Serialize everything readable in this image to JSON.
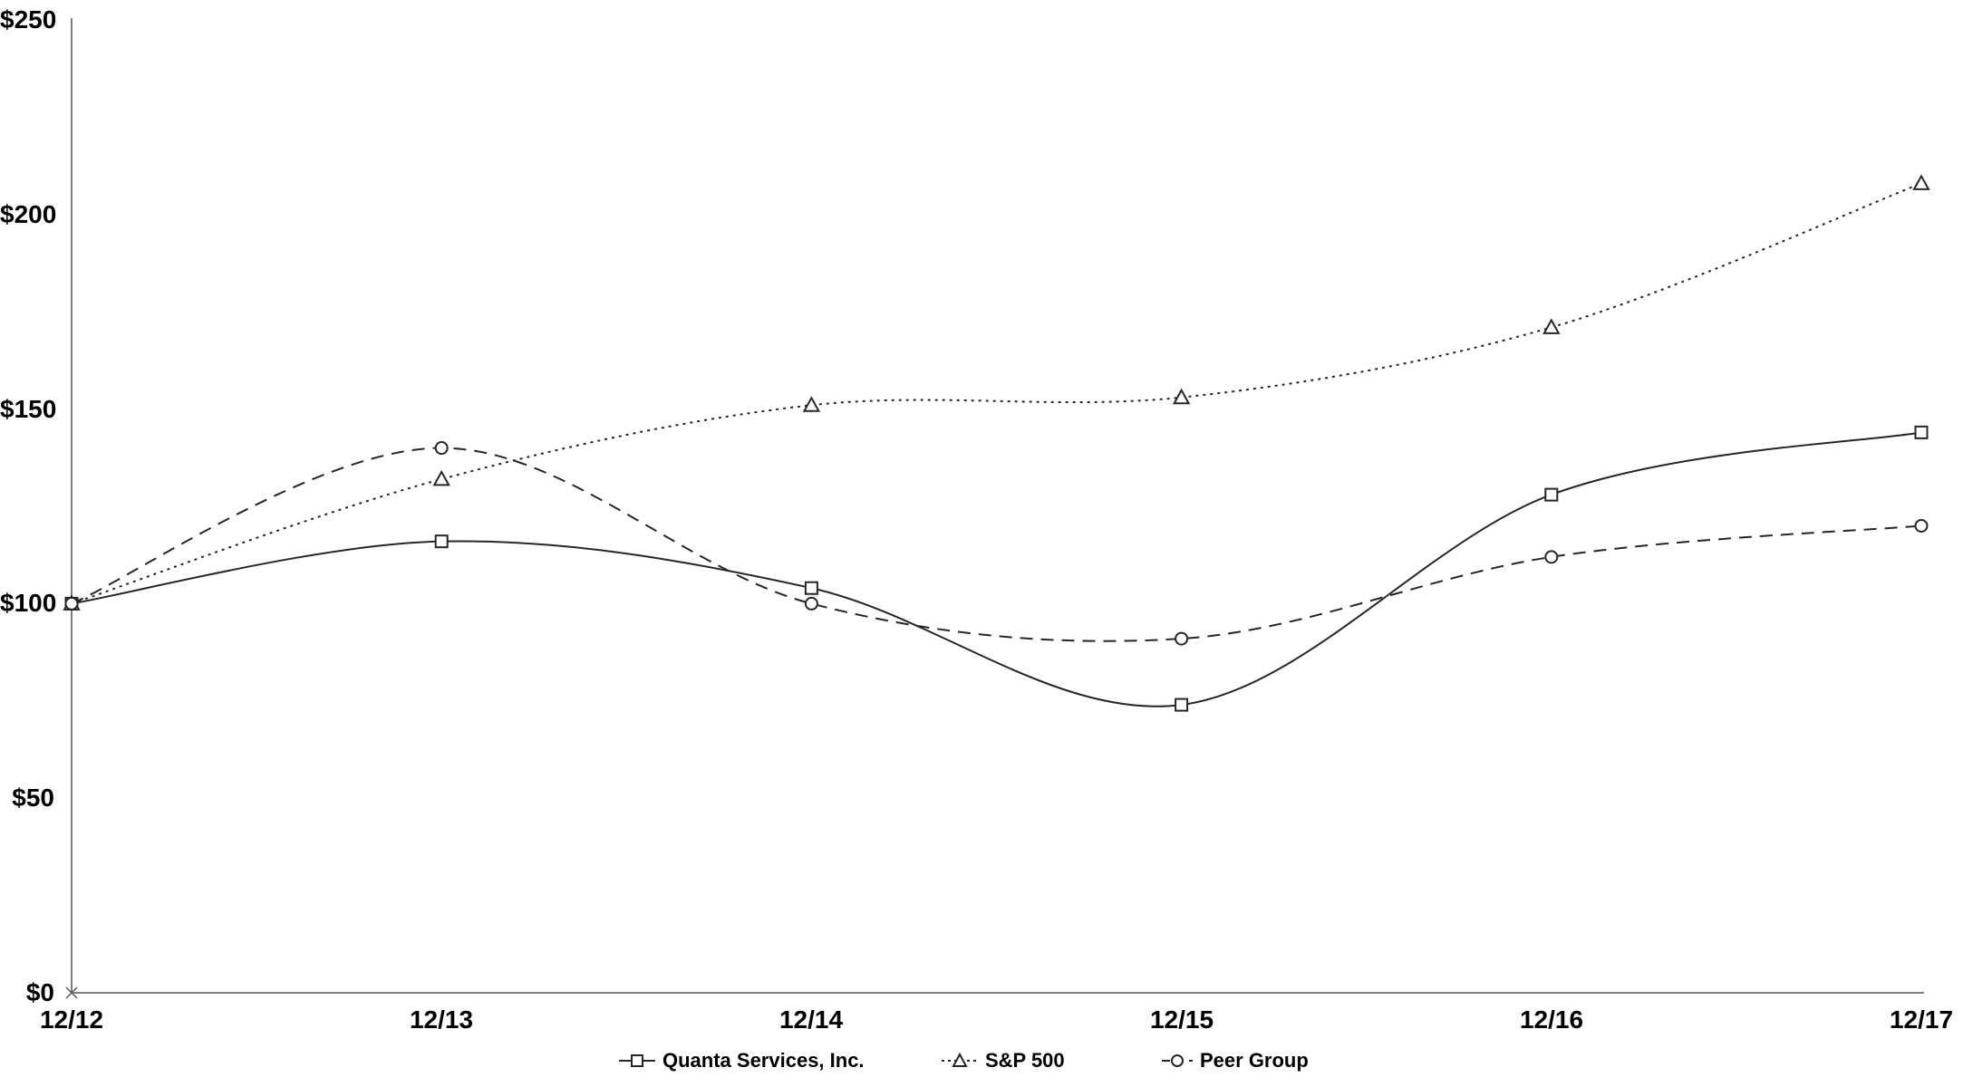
{
  "page": {
    "background": "#ffffff"
  },
  "colors": {
    "series_stroke": "#262626",
    "marker_fill": "#ffffff",
    "axis_line": "#7f7f7f",
    "origin_marker": "#595959",
    "text": "#000000"
  },
  "chart_data": {
    "type": "line",
    "title": "",
    "xlabel": "",
    "ylabel": "",
    "x_categories": [
      "12/12",
      "12/13",
      "12/14",
      "12/15",
      "12/16",
      "12/17"
    ],
    "y_tick_labels": [
      "$0",
      "$50",
      "$100",
      "$150",
      "$200",
      "$250"
    ],
    "y_tick_values": [
      0,
      50,
      100,
      150,
      200,
      250
    ],
    "ylim": [
      0,
      250
    ],
    "grid": false,
    "line_smoothing": true,
    "legend_position": "bottom",
    "series": [
      {
        "name": "Quanta Services, Inc.",
        "values": [
          100,
          116,
          104,
          74,
          128,
          144
        ],
        "line_style": "solid",
        "marker": "square"
      },
      {
        "name": "S&P 500",
        "values": [
          100,
          132,
          151,
          153,
          171,
          208
        ],
        "line_style": "dotted",
        "marker": "triangle"
      },
      {
        "name": "Peer Group",
        "values": [
          100,
          140,
          100,
          91,
          112,
          120
        ],
        "line_style": "dashed",
        "marker": "circle"
      }
    ]
  }
}
